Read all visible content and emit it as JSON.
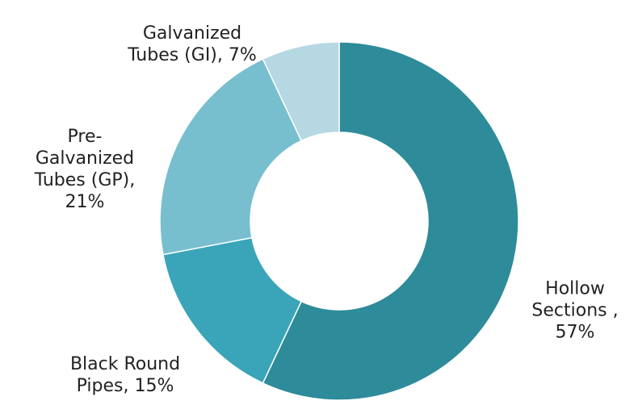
{
  "chart_data": {
    "type": "donut",
    "categories": [
      "Hollow Sections ,",
      "Black Round Pipes,",
      "Pre-Galvanized Tubes (GP),",
      "Galvanized Tubes (GI),"
    ],
    "values": [
      57,
      15,
      21,
      7
    ],
    "value_labels": [
      "57%",
      "15%",
      "21%",
      "7%"
    ],
    "colors": [
      "#2e8b9a",
      "#3aa5b8",
      "#77bfcf",
      "#b5d8e2"
    ]
  }
}
